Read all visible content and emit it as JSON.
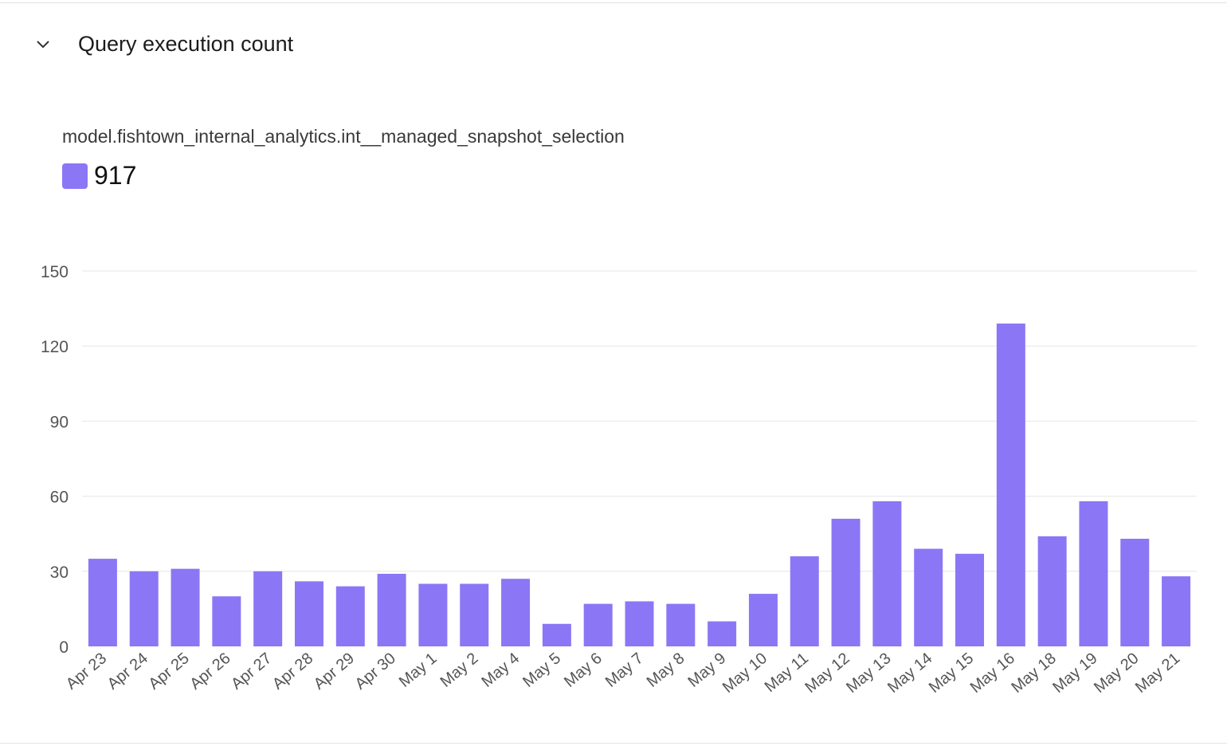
{
  "panel": {
    "title": "Query execution count",
    "collapse_icon": "chevron-down-icon"
  },
  "legend": {
    "series_name": "model.fishtown_internal_analytics.int__managed_snapshot_selection",
    "total": "917"
  },
  "colors": {
    "bar": "#8b77f5",
    "grid": "#e6e6e6",
    "tick": "#555555"
  },
  "chart_data": {
    "type": "bar",
    "title": "",
    "xlabel": "",
    "ylabel": "",
    "ylim": [
      0,
      150
    ],
    "yticks": [
      0,
      30,
      60,
      90,
      120,
      150
    ],
    "grid": true,
    "categories": [
      "Apr 23",
      "Apr 24",
      "Apr 25",
      "Apr 26",
      "Apr 27",
      "Apr 28",
      "Apr 29",
      "Apr 30",
      "May 1",
      "May 2",
      "May 4",
      "May 5",
      "May 6",
      "May 7",
      "May 8",
      "May 9",
      "May 10",
      "May 11",
      "May 12",
      "May 13",
      "May 14",
      "May 15",
      "May 16",
      "May 18",
      "May 19",
      "May 20",
      "May 21"
    ],
    "series": [
      {
        "name": "model.fishtown_internal_analytics.int__managed_snapshot_selection",
        "values": [
          35,
          30,
          31,
          20,
          30,
          26,
          24,
          29,
          25,
          25,
          27,
          9,
          17,
          18,
          17,
          10,
          21,
          36,
          51,
          58,
          39,
          37,
          129,
          44,
          58,
          43,
          28
        ]
      }
    ]
  }
}
